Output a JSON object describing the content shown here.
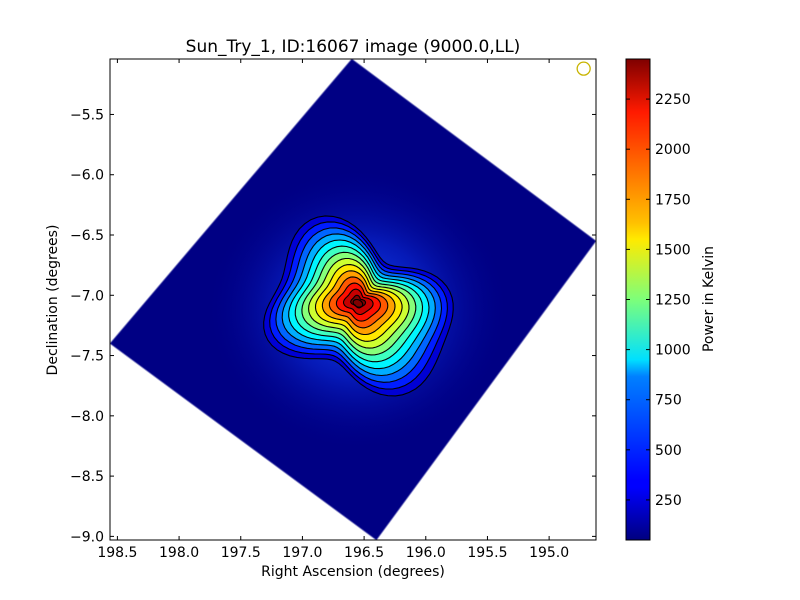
{
  "chart_data": {
    "type": "heatmap",
    "title": "Sun_Try_1, ID:16067 image (9000.0,LL)",
    "xlabel": "Right Ascension (degrees)",
    "ylabel": "Declination (degrees)",
    "xlim": [
      198.56,
      194.62
    ],
    "ylim": [
      -9.03,
      -5.04
    ],
    "x_ticks": [
      {
        "value": 198.5,
        "label": "198.5"
      },
      {
        "value": 198.0,
        "label": "198.0"
      },
      {
        "value": 197.5,
        "label": "197.5"
      },
      {
        "value": 197.0,
        "label": "197.0"
      },
      {
        "value": 196.5,
        "label": "196.5"
      },
      {
        "value": 196.0,
        "label": "196.0"
      },
      {
        "value": 195.5,
        "label": "195.5"
      },
      {
        "value": 195.0,
        "label": "195.0"
      }
    ],
    "y_ticks": [
      {
        "value": -5.5,
        "label": "−5.5"
      },
      {
        "value": -6.0,
        "label": "−6.0"
      },
      {
        "value": -6.5,
        "label": "−6.5"
      },
      {
        "value": -7.0,
        "label": "−7.0"
      },
      {
        "value": -7.5,
        "label": "−7.5"
      },
      {
        "value": -8.0,
        "label": "−8.0"
      },
      {
        "value": -8.5,
        "label": "−8.5"
      },
      {
        "value": -9.0,
        "label": "−9.0"
      }
    ],
    "colorbar": {
      "label": "Power in Kelvin",
      "range": [
        50,
        2450
      ],
      "colormap": "jet",
      "ticks": [
        {
          "value": 250,
          "label": "250"
        },
        {
          "value": 500,
          "label": "500"
        },
        {
          "value": 750,
          "label": "750"
        },
        {
          "value": 1000,
          "label": "1000"
        },
        {
          "value": 1250,
          "label": "1250"
        },
        {
          "value": 1500,
          "label": "1500"
        },
        {
          "value": 1750,
          "label": "1750"
        },
        {
          "value": 2000,
          "label": "2000"
        },
        {
          "value": 2250,
          "label": "2250"
        }
      ]
    },
    "image_footprint_corners_deg": [
      {
        "ra": 196.6,
        "dec": -5.04
      },
      {
        "ra": 194.62,
        "dec": -6.55
      },
      {
        "ra": 196.4,
        "dec": -9.03
      },
      {
        "ra": 198.56,
        "dec": -7.4
      }
    ],
    "peak": {
      "ra": 196.55,
      "dec": -7.05,
      "value": 2450
    },
    "background_value": 60,
    "contours": true,
    "beam_marker": {
      "ra": 194.72,
      "dec": -5.12,
      "color": "#c8b400"
    }
  },
  "colors": {
    "contour": "#000000",
    "beam": "#c8b400"
  }
}
